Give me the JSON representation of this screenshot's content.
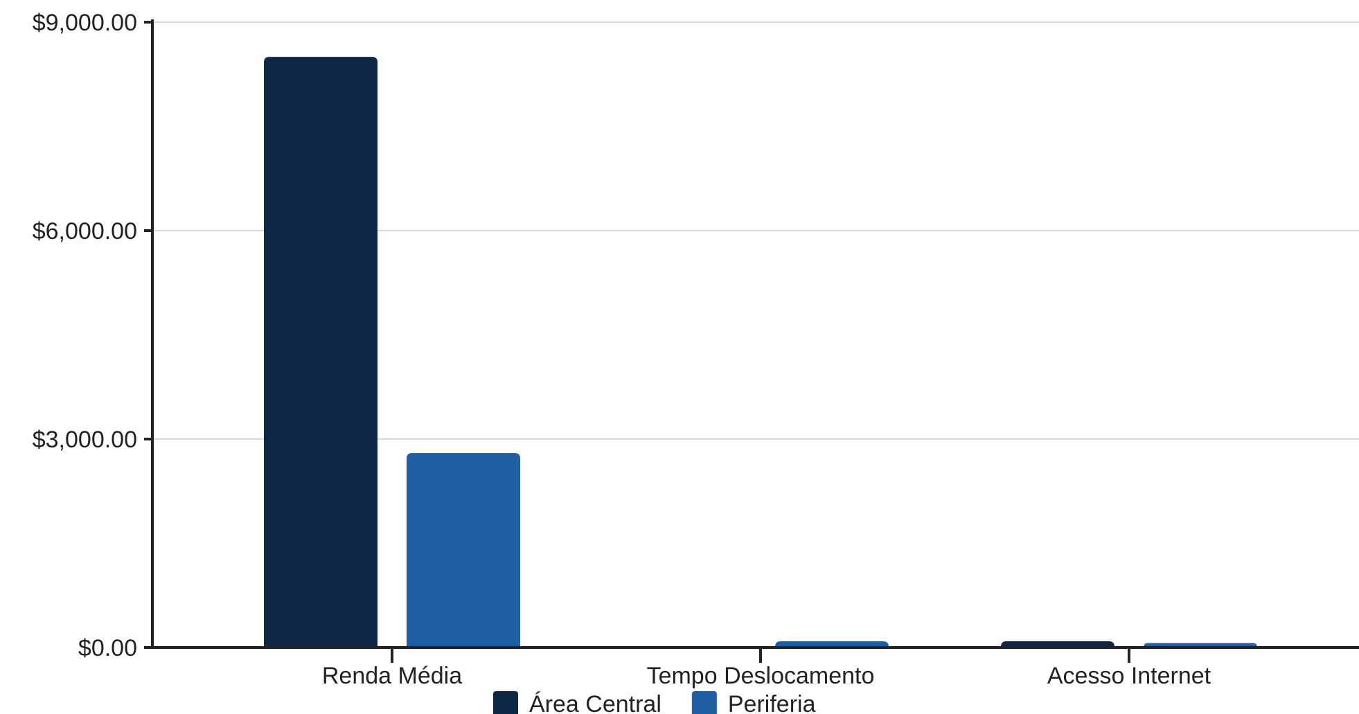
{
  "chart_data": {
    "type": "bar",
    "categories": [
      "Renda Média",
      "Tempo Deslocamento",
      "Acesso Internet"
    ],
    "series": [
      {
        "name": "Área Central",
        "color": "#0d2744",
        "values": [
          8500,
          0,
          90
        ]
      },
      {
        "name": "Periferia",
        "color": "#1f5fa2",
        "values": [
          2800,
          90,
          65
        ]
      }
    ],
    "yticks": [
      0,
      3000,
      6000,
      9000
    ],
    "ytick_labels": [
      "$0.00",
      "$3,000.00",
      "$6,000.00",
      "$9,000.00"
    ],
    "ylim": [
      0,
      9000
    ],
    "grid": true,
    "legend_position": "bottom"
  }
}
